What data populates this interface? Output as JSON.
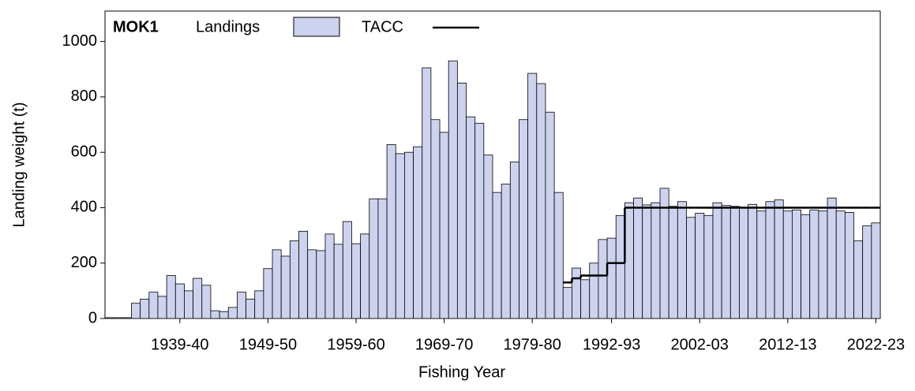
{
  "chart_data": {
    "type": "bar",
    "title": "MOK1",
    "x_label": "Fishing Year",
    "y_label": "Landing weight (t)",
    "categories": [
      null,
      null,
      null,
      null,
      null,
      null,
      null,
      null,
      "1939-40",
      null,
      null,
      null,
      null,
      null,
      null,
      null,
      null,
      null,
      "1949-50",
      null,
      null,
      null,
      null,
      null,
      null,
      null,
      null,
      null,
      "1959-60",
      null,
      null,
      null,
      null,
      null,
      null,
      null,
      null,
      null,
      "1969-70",
      null,
      null,
      null,
      null,
      null,
      null,
      null,
      null,
      null,
      "1979-80",
      null,
      null,
      null,
      null,
      null,
      null,
      null,
      null,
      "1992-93",
      null,
      null,
      null,
      null,
      null,
      null,
      null,
      null,
      null,
      "2002-03",
      null,
      null,
      null,
      null,
      null,
      null,
      null,
      null,
      null,
      "2012-13",
      null,
      null,
      null,
      null,
      null,
      null,
      null,
      null,
      null,
      "2022-23"
    ],
    "series": [
      {
        "name": "Landings",
        "color": "#cdd3ee",
        "values": [
          3,
          3,
          3,
          55,
          70,
          95,
          80,
          155,
          125,
          100,
          145,
          120,
          28,
          25,
          40,
          95,
          70,
          100,
          180,
          248,
          225,
          280,
          315,
          248,
          245,
          305,
          268,
          350,
          270,
          305,
          432,
          432,
          628,
          595,
          600,
          620,
          905,
          718,
          672,
          930,
          850,
          728,
          705,
          590,
          455,
          485,
          565,
          718,
          885,
          848,
          745,
          455,
          112,
          182,
          140,
          200,
          285,
          290,
          372,
          418,
          435,
          410,
          418,
          470,
          405,
          422,
          365,
          380,
          372,
          418,
          408,
          405,
          402,
          412,
          388,
          422,
          428,
          388,
          392,
          375,
          392,
          388,
          435,
          388,
          383,
          280,
          335,
          345
        ]
      },
      {
        "name": "TACC",
        "color": "#000000",
        "values": [
          null,
          null,
          null,
          null,
          null,
          null,
          null,
          null,
          null,
          null,
          null,
          null,
          null,
          null,
          null,
          null,
          null,
          null,
          null,
          null,
          null,
          null,
          null,
          null,
          null,
          null,
          null,
          null,
          null,
          null,
          null,
          null,
          null,
          null,
          null,
          null,
          null,
          null,
          null,
          null,
          null,
          null,
          null,
          null,
          null,
          null,
          null,
          null,
          null,
          null,
          null,
          null,
          130,
          145,
          155,
          155,
          155,
          200,
          200,
          400,
          400,
          400,
          400,
          400,
          400,
          400,
          400,
          400,
          400,
          400,
          400,
          400,
          400,
          400,
          400,
          400,
          400,
          400,
          400,
          400,
          400,
          400,
          400,
          400,
          400,
          400,
          400,
          400
        ]
      }
    ],
    "ylim": [
      0,
      1110
    ],
    "yticks": [
      0,
      200,
      400,
      600,
      800,
      1000
    ]
  }
}
